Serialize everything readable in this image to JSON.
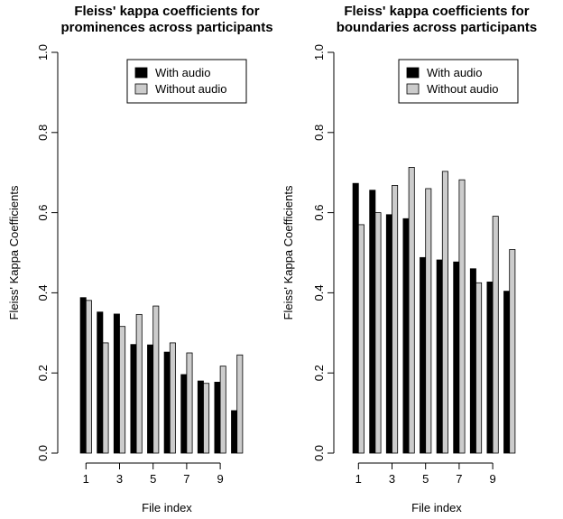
{
  "chart_data": [
    {
      "type": "bar",
      "title_lines": [
        "Fleiss' kappa coefficients for",
        "prominences across participants"
      ],
      "xlabel": "File index",
      "ylabel": "Fleiss' Kappa Coefficients",
      "ylim": [
        0,
        1
      ],
      "yticks": [
        "0.0",
        "0.2",
        "0.4",
        "0.6",
        "0.8",
        "1.0"
      ],
      "xticks": [
        "1",
        "3",
        "5",
        "7",
        "9"
      ],
      "categories": [
        1,
        2,
        3,
        4,
        5,
        6,
        7,
        8,
        9,
        10
      ],
      "series": [
        {
          "name": "With audio",
          "color": "#000000",
          "values": [
            0.388,
            0.352,
            0.347,
            0.271,
            0.27,
            0.252,
            0.196,
            0.18,
            0.177,
            0.106
          ]
        },
        {
          "name": "Without audio",
          "color": "#cccccc",
          "values": [
            0.381,
            0.275,
            0.316,
            0.346,
            0.367,
            0.275,
            0.25,
            0.174,
            0.217,
            0.245
          ]
        }
      ],
      "legend_position": "top-right",
      "grid": false
    },
    {
      "type": "bar",
      "title_lines": [
        "Fleiss' kappa coefficients for",
        "boundaries across participants"
      ],
      "xlabel": "File index",
      "ylabel": "Fleiss' Kappa Coefficients",
      "ylim": [
        0,
        1
      ],
      "yticks": [
        "0.0",
        "0.2",
        "0.4",
        "0.6",
        "0.8",
        "1.0"
      ],
      "xticks": [
        "1",
        "3",
        "5",
        "7",
        "9"
      ],
      "categories": [
        1,
        2,
        3,
        4,
        5,
        6,
        7,
        8,
        9,
        10
      ],
      "series": [
        {
          "name": "With audio",
          "color": "#000000",
          "values": [
            0.673,
            0.656,
            0.595,
            0.585,
            0.488,
            0.482,
            0.477,
            0.46,
            0.427,
            0.404
          ]
        },
        {
          "name": "Without audio",
          "color": "#cccccc",
          "values": [
            0.57,
            0.6,
            0.668,
            0.713,
            0.66,
            0.703,
            0.682,
            0.425,
            0.591,
            0.508
          ]
        }
      ],
      "legend_position": "top-right",
      "grid": false
    }
  ]
}
